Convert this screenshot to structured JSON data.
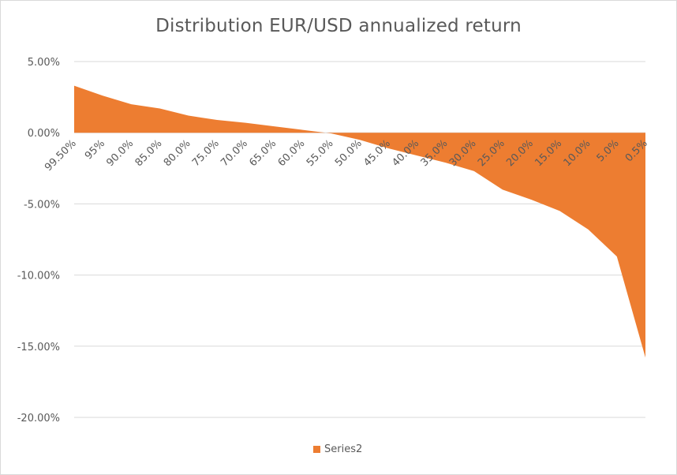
{
  "chart_data": {
    "type": "area",
    "title": "Distribution EUR/USD annualized return",
    "xlabel": "",
    "ylabel": "",
    "y_format": "percent_2dp",
    "ylim": [
      -0.2,
      0.05
    ],
    "yticks": [
      0.05,
      0.0,
      -0.05,
      -0.1,
      -0.15,
      -0.2
    ],
    "ytick_labels": [
      "5.00%",
      "0.00%",
      "-5.00%",
      "-10.00%",
      "-15.00%",
      "-20.00%"
    ],
    "grid": true,
    "legend_position": "bottom",
    "color": "#ED7D31",
    "categories": [
      "99.50%",
      "95%",
      "90.0%",
      "85.0%",
      "80.0%",
      "75.0%",
      "70.0%",
      "65.0%",
      "60.0%",
      "55.0%",
      "50.0%",
      "45.0%",
      "40.0%",
      "35.0%",
      "30.0%",
      "25.0%",
      "20.0%",
      "15.0%",
      "10.0%",
      "5.0%",
      "0.5%"
    ],
    "series": [
      {
        "name": "Series2",
        "values": [
          0.033,
          0.026,
          0.02,
          0.017,
          0.012,
          0.009,
          0.007,
          0.0045,
          0.002,
          -0.0005,
          -0.005,
          -0.011,
          -0.016,
          -0.021,
          -0.027,
          -0.04,
          -0.047,
          -0.055,
          -0.068,
          -0.087,
          -0.158
        ]
      }
    ]
  }
}
